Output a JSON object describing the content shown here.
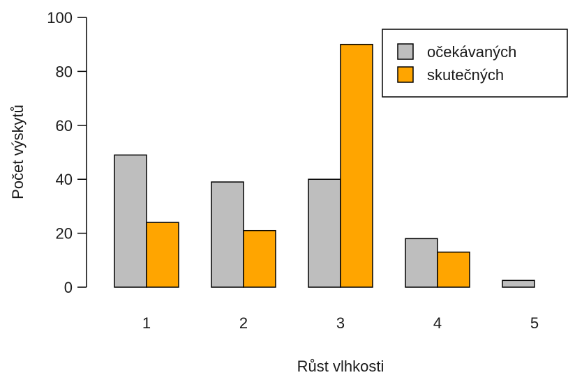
{
  "chart_data": {
    "type": "bar",
    "xlabel": "Růst vlhkosti",
    "ylabel": "Počet výskytů",
    "categories": [
      "1",
      "2",
      "3",
      "4",
      "5"
    ],
    "series": [
      {
        "name": "očekávaných",
        "color": "#bebebe",
        "values": [
          49,
          39,
          40,
          18,
          2.5
        ]
      },
      {
        "name": "skutečných",
        "color": "#ffa500",
        "values": [
          24,
          21,
          90,
          13,
          0
        ]
      }
    ],
    "ylim": [
      0,
      100
    ],
    "yticks": [
      "0",
      "20",
      "40",
      "60",
      "80",
      "100"
    ],
    "grid": false,
    "legend_position": "top-right"
  }
}
